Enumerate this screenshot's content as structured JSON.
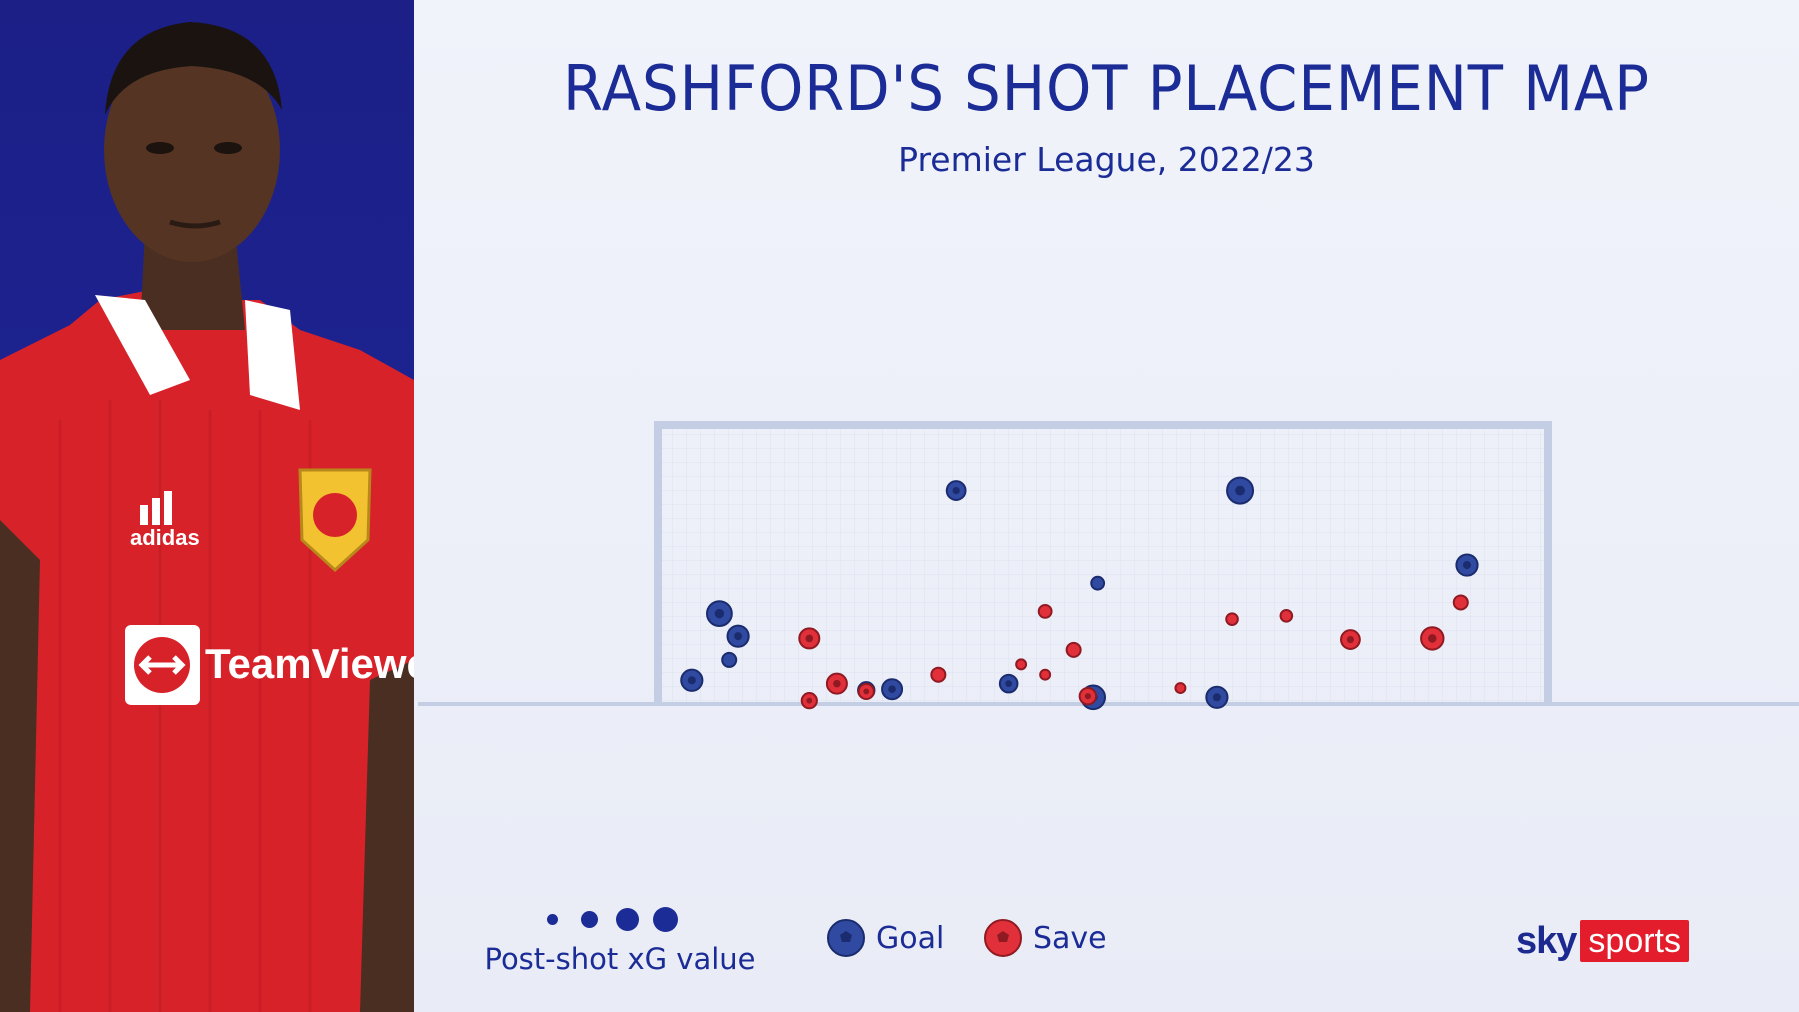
{
  "header": {
    "title": "RASHFORD'S SHOT PLACEMENT MAP",
    "subtitle": "Premier League, 2022/23"
  },
  "legend": {
    "xg_label": "Post-shot xG value",
    "goal_label": "Goal",
    "save_label": "Save"
  },
  "logo": {
    "sky": "sky",
    "sports": "sports"
  },
  "colors": {
    "goal": "#2f4aa0",
    "save": "#e2303b",
    "title": "#1b2c96",
    "panel": "#1d2393",
    "goal_frame": "#c3cde3"
  },
  "chart_data": {
    "type": "scatter",
    "title": "RASHFORD'S SHOT PLACEMENT MAP",
    "subtitle": "Premier League, 2022/23",
    "xlabel": "",
    "ylabel": "",
    "xlim": [
      0,
      100
    ],
    "ylim": [
      0,
      100
    ],
    "size_legend": "Post-shot xG value",
    "series": [
      {
        "name": "Goal",
        "points": [
          {
            "x": 3.8,
            "y": 8.5,
            "xg": 0.55
          },
          {
            "x": 6.9,
            "y": 32.4,
            "xg": 0.7
          },
          {
            "x": 9.0,
            "y": 24.3,
            "xg": 0.55
          },
          {
            "x": 8.0,
            "y": 15.8,
            "xg": 0.25
          },
          {
            "x": 23.4,
            "y": 4.9,
            "xg": 0.35
          },
          {
            "x": 26.3,
            "y": 5.3,
            "xg": 0.5
          },
          {
            "x": 33.5,
            "y": 76.5,
            "xg": 0.45
          },
          {
            "x": 39.4,
            "y": 7.3,
            "xg": 0.4
          },
          {
            "x": 48.9,
            "y": 2.4,
            "xg": 0.65
          },
          {
            "x": 49.4,
            "y": 43.3,
            "xg": 0.2
          },
          {
            "x": 62.8,
            "y": 2.4,
            "xg": 0.55
          },
          {
            "x": 65.4,
            "y": 76.5,
            "xg": 0.75
          },
          {
            "x": 90.9,
            "y": 49.8,
            "xg": 0.55
          }
        ]
      },
      {
        "name": "Save",
        "points": [
          {
            "x": 17.0,
            "y": 23.5,
            "xg": 0.5
          },
          {
            "x": 17.0,
            "y": 1.2,
            "xg": 0.3
          },
          {
            "x": 20.1,
            "y": 7.3,
            "xg": 0.5
          },
          {
            "x": 23.4,
            "y": 4.5,
            "xg": 0.3
          },
          {
            "x": 31.5,
            "y": 10.5,
            "xg": 0.25
          },
          {
            "x": 40.8,
            "y": 14.2,
            "xg": 0.08
          },
          {
            "x": 43.5,
            "y": 10.5,
            "xg": 0.08
          },
          {
            "x": 43.5,
            "y": 33.2,
            "xg": 0.2
          },
          {
            "x": 46.7,
            "y": 19.4,
            "xg": 0.25
          },
          {
            "x": 48.3,
            "y": 2.8,
            "xg": 0.35
          },
          {
            "x": 58.7,
            "y": 5.7,
            "xg": 0.08
          },
          {
            "x": 64.5,
            "y": 30.4,
            "xg": 0.15
          },
          {
            "x": 70.6,
            "y": 31.6,
            "xg": 0.15
          },
          {
            "x": 77.8,
            "y": 23.1,
            "xg": 0.45
          },
          {
            "x": 87.0,
            "y": 23.5,
            "xg": 0.6
          },
          {
            "x": 90.2,
            "y": 36.4,
            "xg": 0.25
          }
        ]
      }
    ]
  }
}
